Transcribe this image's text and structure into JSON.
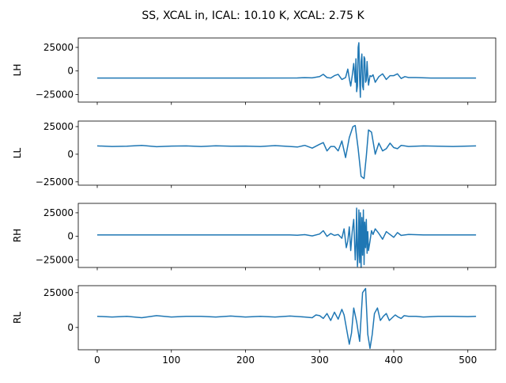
{
  "title": "SS, XCAL in, ICAL: 10.10 K, XCAL: 2.75 K",
  "chart_data": {
    "type": "line",
    "title": "SS, XCAL in, ICAL: 10.10 K, XCAL: 2.75 K",
    "line_color": "#1f77b4",
    "x_range": [
      0,
      511
    ],
    "x_ticks": [
      0,
      100,
      200,
      300,
      400,
      500
    ],
    "x_tick_labels": [
      "0",
      "100",
      "200",
      "300",
      "400",
      "500"
    ],
    "panels": [
      {
        "ylabel": "LH",
        "ylim": [
          -33000,
          35000
        ],
        "y_ticks": [
          -25000,
          0,
          25000
        ],
        "y_tick_labels": [
          "−25000",
          "0",
          "25000"
        ],
        "series": [
          {
            "x": [
              0,
              100,
              200,
              270,
              280,
              290,
              300,
              305,
              310,
              315,
              320,
              325,
              330,
              335,
              338,
              340,
              342,
              344,
              346,
              348,
              349,
              350,
              351,
              352,
              353,
              354,
              355,
              356,
              357,
              358,
              359,
              360,
              361,
              362,
              363,
              364,
              365,
              366,
              368,
              370,
              372,
              375,
              380,
              385,
              390,
              395,
              400,
              405,
              410,
              415,
              420,
              430,
              450,
              480,
              511
            ],
            "y": [
              -7500,
              -7500,
              -7500,
              -7400,
              -7100,
              -7300,
              -6000,
              -3500,
              -7000,
              -7500,
              -5000,
              -3500,
              -9000,
              -7000,
              2000,
              -8000,
              -16000,
              -5000,
              8000,
              -12000,
              13000,
              -22000,
              -16000,
              25000,
              30000,
              -10000,
              -28000,
              10000,
              18000,
              -16000,
              -20000,
              15000,
              13000,
              -12000,
              -10000,
              10000,
              -5000,
              -15000,
              -5000,
              -6000,
              -4000,
              -12000,
              -6000,
              -3000,
              -9000,
              -5000,
              -5000,
              -3000,
              -8000,
              -6000,
              -7000,
              -7000,
              -7500,
              -7500,
              -7500
            ]
          }
        ]
      },
      {
        "ylabel": "LL",
        "ylim": [
          -28000,
          30000
        ],
        "y_ticks": [
          -25000,
          0,
          25000
        ],
        "y_tick_labels": [
          "−25000",
          "0",
          "25000"
        ],
        "series": [
          {
            "x": [
              0,
              20,
              40,
              60,
              80,
              100,
              120,
              140,
              160,
              180,
              200,
              220,
              240,
              260,
              270,
              280,
              290,
              300,
              305,
              310,
              315,
              320,
              325,
              330,
              335,
              340,
              345,
              348,
              352,
              356,
              360,
              363,
              366,
              370,
              375,
              380,
              385,
              390,
              395,
              400,
              405,
              410,
              420,
              440,
              460,
              480,
              500,
              511
            ],
            "y": [
              7500,
              7000,
              7200,
              8000,
              6800,
              7400,
              7500,
              7000,
              7600,
              7200,
              7400,
              7000,
              7800,
              7000,
              6500,
              8000,
              5500,
              9000,
              10500,
              3000,
              7000,
              7000,
              3000,
              12000,
              -3000,
              15000,
              25000,
              26000,
              5000,
              -20000,
              -22000,
              -2000,
              22000,
              20000,
              0,
              10000,
              3000,
              5000,
              10000,
              6000,
              5000,
              8000,
              7000,
              7500,
              7200,
              7000,
              7400,
              7500
            ]
          }
        ]
      },
      {
        "ylabel": "RH",
        "ylim": [
          -33000,
          35000
        ],
        "y_ticks": [
          -25000,
          0,
          25000
        ],
        "y_tick_labels": [
          "−25000",
          "0",
          "25000"
        ],
        "series": [
          {
            "x": [
              0,
              100,
              200,
              260,
              270,
              280,
              290,
              300,
              305,
              310,
              315,
              320,
              325,
              330,
              333,
              336,
              338,
              340,
              342,
              344,
              346,
              348,
              349,
              350,
              351,
              352,
              353,
              354,
              355,
              356,
              357,
              358,
              359,
              360,
              361,
              362,
              363,
              364,
              365,
              366,
              368,
              370,
              372,
              375,
              380,
              385,
              390,
              395,
              400,
              405,
              410,
              420,
              440,
              470,
              511
            ],
            "y": [
              1500,
              1500,
              1500,
              1500,
              1200,
              1800,
              500,
              2500,
              6000,
              0,
              3000,
              1000,
              2000,
              -2000,
              8000,
              -12000,
              -5000,
              10000,
              -15000,
              5000,
              18000,
              -25000,
              -10000,
              30000,
              -32000,
              -20000,
              28000,
              -28000,
              25000,
              -33000,
              20000,
              -20000,
              28000,
              -30000,
              15000,
              -12000,
              18000,
              -18000,
              5000,
              -15000,
              -5000,
              6000,
              2000,
              8000,
              3000,
              -3000,
              5000,
              2000,
              -1000,
              4000,
              1000,
              2000,
              1500,
              1500,
              1500
            ]
          }
        ]
      },
      {
        "ylabel": "RL",
        "ylim": [
          -16000,
          30000
        ],
        "y_ticks": [
          0,
          25000
        ],
        "y_tick_labels": [
          "0",
          "25000"
        ],
        "series": [
          {
            "x": [
              0,
              20,
              40,
              60,
              80,
              100,
              120,
              140,
              160,
              180,
              200,
              220,
              240,
              260,
              280,
              290,
              295,
              300,
              305,
              310,
              315,
              320,
              325,
              330,
              333,
              336,
              340,
              343,
              346,
              350,
              354,
              358,
              362,
              365,
              368,
              371,
              374,
              378,
              382,
              386,
              390,
              394,
              398,
              402,
              406,
              410,
              414,
              420,
              430,
              440,
              460,
              480,
              500,
              511
            ],
            "y": [
              8000,
              7500,
              8000,
              7000,
              8500,
              7500,
              8000,
              8000,
              7500,
              8200,
              7500,
              8000,
              7500,
              8200,
              7500,
              7000,
              9000,
              8500,
              6500,
              10000,
              5000,
              11000,
              6000,
              13000,
              9000,
              0,
              -12000,
              -4000,
              14000,
              4000,
              -10000,
              25000,
              28000,
              -5000,
              -15000,
              -5000,
              10000,
              14000,
              5000,
              8000,
              10000,
              5000,
              7000,
              9000,
              7500,
              6500,
              8500,
              8000,
              8000,
              7500,
              8000,
              8000,
              7800,
              8000
            ]
          }
        ]
      }
    ]
  }
}
